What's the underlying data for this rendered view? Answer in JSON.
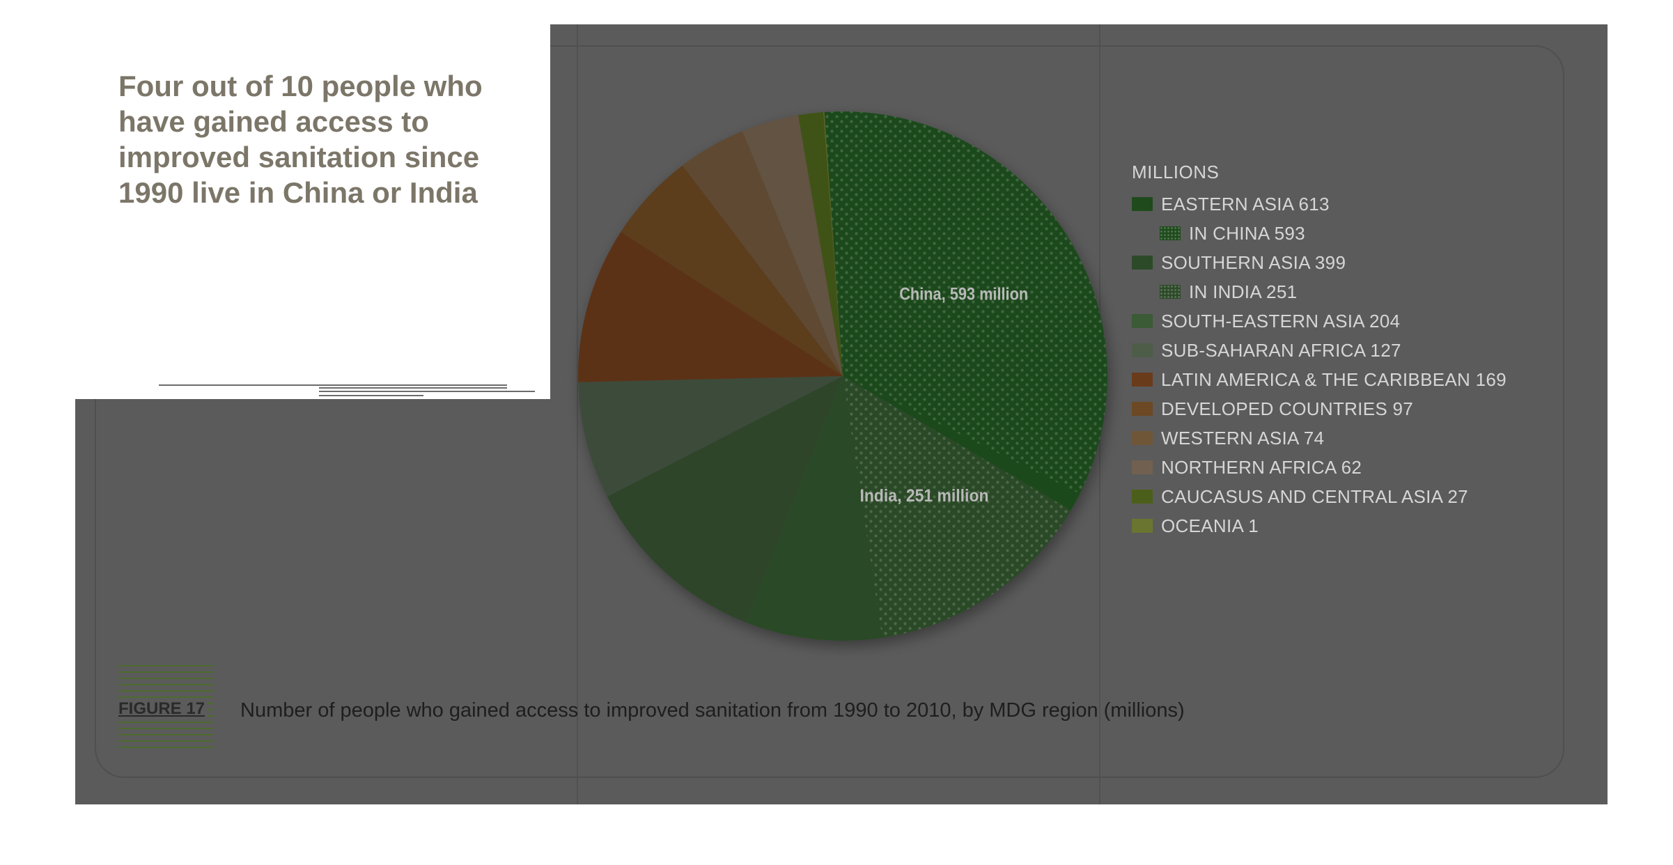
{
  "headline": "Four out of 10 people who have gained access to improved sanitation since 1990 live in China or India",
  "figure": {
    "label": "FIGURE 17",
    "caption": "Number of people who gained access to improved sanitation from 1990 to 2010, by MDG region (millions)"
  },
  "chart_data": {
    "type": "pie",
    "unit_label": "MILLIONS",
    "slices": [
      {
        "name": "EASTERN ASIA",
        "value": 613,
        "color": "#1f4a1c"
      },
      {
        "name": "SOUTHERN ASIA",
        "value": 399,
        "color": "#2c4a28"
      },
      {
        "name": "SOUTH-EASTERN ASIA",
        "value": 204,
        "color": "#2f452b"
      },
      {
        "name": "SUB-SAHARAN AFRICA",
        "value": 127,
        "color": "#3e4c3a"
      },
      {
        "name": "LATIN AMERICA & THE CARIBBEAN",
        "value": 169,
        "color": "#5c3318"
      },
      {
        "name": "DEVELOPED COUNTRIES",
        "value": 97,
        "color": "#5b3c1c"
      },
      {
        "name": "WESTERN ASIA",
        "value": 74,
        "color": "#5f4a30"
      },
      {
        "name": "NORTHERN AFRICA",
        "value": 62,
        "color": "#625243"
      },
      {
        "name": "CAUCASUS AND CENTRAL ASIA",
        "value": 27,
        "color": "#3f5214"
      },
      {
        "name": "OCEANIA",
        "value": 1,
        "color": "#5f6b27"
      }
    ],
    "sub_slices": [
      {
        "name": "IN CHINA",
        "value": 593,
        "parent": "EASTERN ASIA",
        "color": "#1f4a1c",
        "annotation": "China, 593 million"
      },
      {
        "name": "IN INDIA",
        "value": 251,
        "parent": "SOUTHERN ASIA",
        "color": "#2c4a28",
        "annotation": "India, 251 million"
      }
    ],
    "legend": [
      {
        "label": "EASTERN ASIA 613",
        "color": "#1f4a1c",
        "sub": false,
        "dotted": false
      },
      {
        "label": "IN CHINA 593",
        "color": "#1f4a1c",
        "sub": true,
        "dotted": true
      },
      {
        "label": "SOUTHERN ASIA 399",
        "color": "#2c4a28",
        "sub": false,
        "dotted": false
      },
      {
        "label": "IN INDIA 251",
        "color": "#2c4a28",
        "sub": true,
        "dotted": true
      },
      {
        "label": "SOUTH-EASTERN ASIA 204",
        "color": "#3b5a36",
        "sub": false,
        "dotted": false
      },
      {
        "label": "SUB-SAHARAN AFRICA 127",
        "color": "#4d5d48",
        "sub": false,
        "dotted": false
      },
      {
        "label": "LATIN AMERICA & THE CARIBBEAN 169",
        "color": "#6a3b1b",
        "sub": false,
        "dotted": false
      },
      {
        "label": "DEVELOPED COUNTRIES 97",
        "color": "#6c4824",
        "sub": false,
        "dotted": false
      },
      {
        "label": "WESTERN ASIA 74",
        "color": "#6f5637",
        "sub": false,
        "dotted": false
      },
      {
        "label": "NORTHERN AFRICA 62",
        "color": "#716050",
        "sub": false,
        "dotted": false
      },
      {
        "label": "CAUCASUS AND CENTRAL ASIA 27",
        "color": "#4c5f1a",
        "sub": false,
        "dotted": false
      },
      {
        "label": "OCEANIA 1",
        "color": "#6a7530",
        "sub": false,
        "dotted": false
      }
    ],
    "legend_placement": "right"
  }
}
